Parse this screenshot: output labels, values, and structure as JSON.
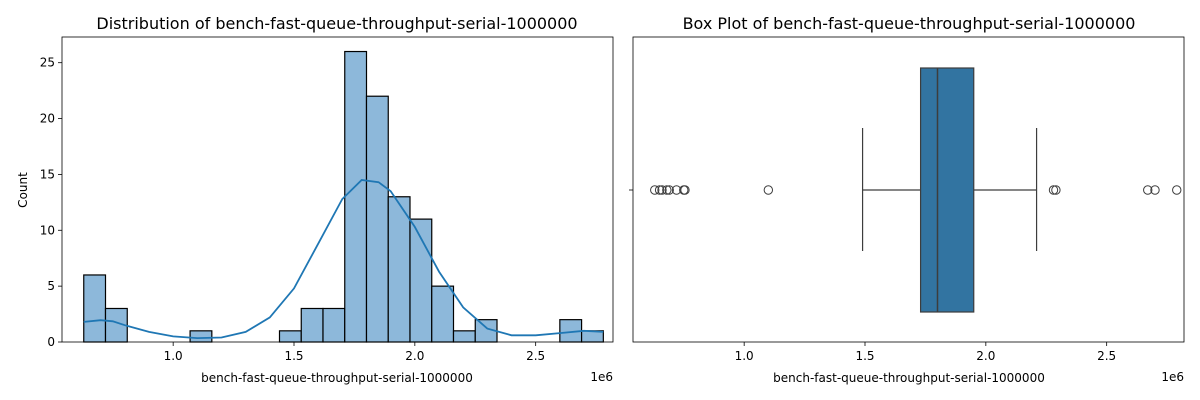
{
  "chart_data": [
    {
      "type": "histogram",
      "title": "Distribution of bench-fast-queue-throughput-serial-1000000",
      "xlabel": "bench-fast-queue-throughput-serial-1000000",
      "ylabel": "Count",
      "offset_label": "1e6",
      "xlim": [
        0.54,
        2.82
      ],
      "ylim": [
        0,
        27.3
      ],
      "x_ticks": [
        1.0,
        1.5,
        2.0,
        2.5
      ],
      "x_tick_labels": [
        "1.0",
        "1.5",
        "2.0",
        "2.5"
      ],
      "y_ticks": [
        0,
        5,
        10,
        15,
        20,
        25
      ],
      "y_tick_labels": [
        "0",
        "5",
        "10",
        "15",
        "20",
        "25"
      ],
      "bins": [
        {
          "x0": 0.63,
          "x1": 0.72,
          "count": 6
        },
        {
          "x0": 0.72,
          "x1": 0.81,
          "count": 3
        },
        {
          "x0": 1.07,
          "x1": 1.16,
          "count": 1
        },
        {
          "x0": 1.44,
          "x1": 1.53,
          "count": 1
        },
        {
          "x0": 1.53,
          "x1": 1.62,
          "count": 3
        },
        {
          "x0": 1.62,
          "x1": 1.71,
          "count": 3
        },
        {
          "x0": 1.71,
          "x1": 1.8,
          "count": 26
        },
        {
          "x0": 1.8,
          "x1": 1.89,
          "count": 22
        },
        {
          "x0": 1.89,
          "x1": 1.98,
          "count": 13
        },
        {
          "x0": 1.98,
          "x1": 2.07,
          "count": 11
        },
        {
          "x0": 2.07,
          "x1": 2.16,
          "count": 5
        },
        {
          "x0": 2.16,
          "x1": 2.25,
          "count": 1
        },
        {
          "x0": 2.25,
          "x1": 2.34,
          "count": 2
        },
        {
          "x0": 2.6,
          "x1": 2.69,
          "count": 2
        },
        {
          "x0": 2.69,
          "x1": 2.78,
          "count": 1
        }
      ],
      "kde": {
        "x": [
          0.63,
          0.7,
          0.75,
          0.8,
          0.9,
          1.0,
          1.1,
          1.2,
          1.3,
          1.4,
          1.5,
          1.6,
          1.7,
          1.78,
          1.85,
          1.9,
          2.0,
          2.1,
          2.2,
          2.3,
          2.4,
          2.5,
          2.6,
          2.7,
          2.78
        ],
        "y": [
          1.8,
          1.95,
          1.85,
          1.5,
          0.9,
          0.5,
          0.35,
          0.4,
          0.9,
          2.2,
          4.8,
          8.8,
          12.8,
          14.5,
          14.3,
          13.5,
          10.3,
          6.3,
          3.1,
          1.2,
          0.6,
          0.6,
          0.8,
          1.0,
          0.9
        ]
      },
      "colors": {
        "bar": "#8db8da",
        "edge": "#000000",
        "line": "#1f77b4"
      }
    },
    {
      "type": "box",
      "title": "Box Plot of bench-fast-queue-throughput-serial-1000000",
      "xlabel": "bench-fast-queue-throughput-serial-1000000",
      "offset_label": "1e6",
      "xlim": [
        0.54,
        2.82
      ],
      "x_ticks": [
        1.0,
        1.5,
        2.0,
        2.5
      ],
      "x_tick_labels": [
        "1.0",
        "1.5",
        "2.0",
        "2.5"
      ],
      "whisker_low": 1.49,
      "q1": 1.73,
      "median": 1.8,
      "q3": 1.95,
      "whisker_high": 2.21,
      "outliers": [
        0.63,
        0.65,
        0.66,
        0.68,
        0.69,
        0.72,
        0.75,
        0.755,
        1.1,
        2.28,
        2.29,
        2.67,
        2.7,
        2.79
      ],
      "colors": {
        "box": "#3274a1",
        "edge": "#3d3d3d"
      }
    }
  ]
}
